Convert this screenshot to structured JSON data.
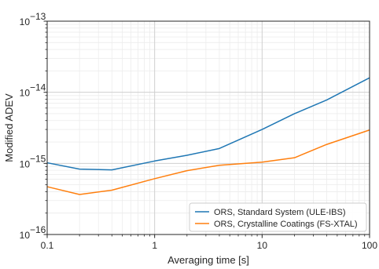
{
  "chart_data": {
    "type": "line",
    "title": "",
    "xlabel": "Averaging time [s]",
    "ylabel": "Modified ADEV",
    "xscale": "log",
    "yscale": "log",
    "xlim": [
      0.1,
      100
    ],
    "ylim": [
      1e-16,
      1e-13
    ],
    "grid": true,
    "legend_position": "lower-right",
    "x_ticks": [
      {
        "value": 0.1,
        "label": "0.1"
      },
      {
        "value": 1,
        "label": "1"
      },
      {
        "value": 10,
        "label": "10"
      },
      {
        "value": 100,
        "label": "100"
      }
    ],
    "y_ticks": [
      {
        "value": 1e-16,
        "base": "10",
        "exp": "−16"
      },
      {
        "value": 1e-15,
        "base": "10",
        "exp": "−15"
      },
      {
        "value": 1e-14,
        "base": "10",
        "exp": "−14"
      },
      {
        "value": 1e-13,
        "base": "10",
        "exp": "−13"
      }
    ],
    "series": [
      {
        "name": "ORS, Standard System (ULE-IBS)",
        "color": "#1f77b4",
        "x": [
          0.1,
          0.2,
          0.4,
          1,
          2,
          4,
          10,
          20,
          40,
          100
        ],
        "y": [
          1.02e-15,
          8.3e-16,
          8.1e-16,
          1.08e-15,
          1.3e-15,
          1.62e-15,
          3e-15,
          5e-15,
          7.8e-15,
          1.6e-14
        ]
      },
      {
        "name": "ORS, Crystalline Coatings (FS-XTAL)",
        "color": "#ff7f0e",
        "x": [
          0.1,
          0.2,
          0.4,
          1,
          2,
          4,
          10,
          20,
          40,
          100
        ],
        "y": [
          4.7e-16,
          3.65e-16,
          4.2e-16,
          6.1e-16,
          7.9e-16,
          9.4e-16,
          1.04e-15,
          1.2e-15,
          1.85e-15,
          2.95e-15
        ]
      }
    ]
  }
}
